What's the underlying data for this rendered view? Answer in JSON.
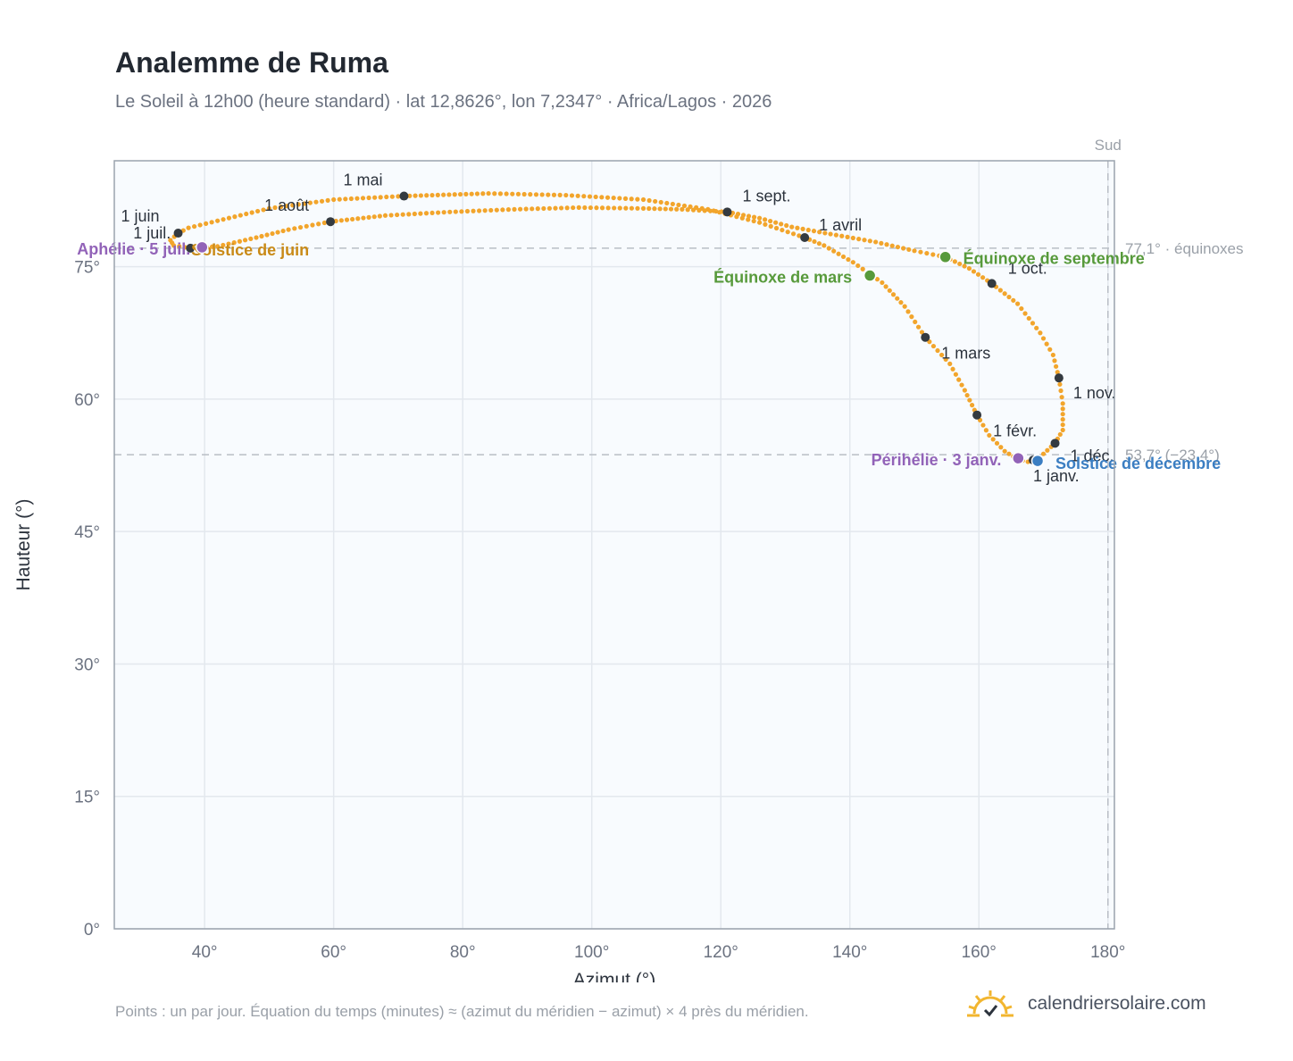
{
  "title": "Analemme de Ruma",
  "subtitle": "Le Soleil à 12h00 (heure standard) · lat 12,8626°, lon 7,2347° · Africa/Lagos · 2026",
  "footnote": "Points : un par jour. Équation du temps (minutes) ≈ (azimut du méridien − azimut) × 4 près du méridien.",
  "brand": {
    "name": "calendriersolaire.com",
    "icon": "sun-logo-icon"
  },
  "colors": {
    "curve": "#f2a52c",
    "month_marker": "#343a40",
    "solstice_june": "#c98a17",
    "solstice_december": "#3b7ec2",
    "equinox": "#579a3b",
    "apsis": "#9263b8",
    "plot_bg": "#f8fbfe",
    "grid": "#e3e8ee",
    "reference_line": "#b9bec5"
  },
  "chart_data": {
    "type": "scatter",
    "xlabel": "Azimut (°)",
    "ylabel": "Hauteur (°)",
    "xlim": [
      26,
      181
    ],
    "ylim": [
      0,
      87
    ],
    "xticks": [
      40,
      60,
      80,
      100,
      120,
      140,
      160,
      180
    ],
    "xtick_labels": [
      "40°",
      "60°",
      "80°",
      "100°",
      "120°",
      "140°",
      "160°",
      "180°"
    ],
    "yticks": [
      0,
      15,
      30,
      45,
      60,
      75
    ],
    "ytick_labels": [
      "0°",
      "15°",
      "30°",
      "45°",
      "60°",
      "75°"
    ],
    "grid": true,
    "meridian": {
      "azimuth": 180,
      "label": "Sud"
    },
    "reference_lines": [
      {
        "altitude": 77.1,
        "label": "77,1° · équinoxes"
      },
      {
        "altitude": 53.7,
        "label": "53,7° (−23,4°)"
      }
    ],
    "month_markers": [
      {
        "label": "1 janv.",
        "x": 168.4,
        "y": 53.1
      },
      {
        "label": "1 févr.",
        "x": 159.7,
        "y": 58.2
      },
      {
        "label": "1 mars",
        "x": 151.7,
        "y": 67.0
      },
      {
        "label": "1 avril",
        "x": 133.0,
        "y": 78.3
      },
      {
        "label": "1 mai",
        "x": 70.9,
        "y": 83.0
      },
      {
        "label": "1 juin",
        "x": 35.9,
        "y": 78.8
      },
      {
        "label": "1 juil.",
        "x": 37.8,
        "y": 77.1
      },
      {
        "label": "1 août",
        "x": 59.5,
        "y": 80.1
      },
      {
        "label": "1 sept.",
        "x": 121.0,
        "y": 81.2
      },
      {
        "label": "1 oct.",
        "x": 162.0,
        "y": 73.1
      },
      {
        "label": "1 nov.",
        "x": 172.4,
        "y": 62.4
      },
      {
        "label": "1 déc.",
        "x": 171.8,
        "y": 55.0
      }
    ],
    "events": [
      {
        "label": "Solstice de juin",
        "x": 39.3,
        "y": 77.1,
        "kind": "solstice_june"
      },
      {
        "label": "Aphélie · 5 juil.",
        "x": 39.6,
        "y": 77.2,
        "kind": "apsis"
      },
      {
        "label": "Équinoxe de mars",
        "x": 143.1,
        "y": 74.0,
        "kind": "equinox"
      },
      {
        "label": "Équinoxe de septembre",
        "x": 154.8,
        "y": 76.1,
        "kind": "equinox"
      },
      {
        "label": "Périhélie · 3 janv.",
        "x": 166.1,
        "y": 53.3,
        "kind": "apsis"
      },
      {
        "label": "Solstice de décembre",
        "x": 169.1,
        "y": 53.0,
        "kind": "solstice_december"
      }
    ],
    "daily_path": [
      [
        167.6,
        52.9
      ],
      [
        166.0,
        53.2
      ],
      [
        164.0,
        54.1
      ],
      [
        161.6,
        55.9
      ],
      [
        159.7,
        58.2
      ],
      [
        157.8,
        61.0
      ],
      [
        155.5,
        64.0
      ],
      [
        151.7,
        67.0
      ],
      [
        148.5,
        70.5
      ],
      [
        145.0,
        73.2
      ],
      [
        140.5,
        75.5
      ],
      [
        136.0,
        77.4
      ],
      [
        133.0,
        78.3
      ],
      [
        126.0,
        80.0
      ],
      [
        118.0,
        81.5
      ],
      [
        108.0,
        82.6
      ],
      [
        96.0,
        83.1
      ],
      [
        84.0,
        83.3
      ],
      [
        70.9,
        83.0
      ],
      [
        60.0,
        82.6
      ],
      [
        50.0,
        81.6
      ],
      [
        42.0,
        80.2
      ],
      [
        37.5,
        79.4
      ],
      [
        35.9,
        78.8
      ],
      [
        34.7,
        78.0
      ],
      [
        35.2,
        77.4
      ],
      [
        37.8,
        77.1
      ],
      [
        42.0,
        77.3
      ],
      [
        48.0,
        78.3
      ],
      [
        53.0,
        79.2
      ],
      [
        59.5,
        80.1
      ],
      [
        68.0,
        80.8
      ],
      [
        78.0,
        81.2
      ],
      [
        88.0,
        81.5
      ],
      [
        98.0,
        81.7
      ],
      [
        108.0,
        81.6
      ],
      [
        114.0,
        81.5
      ],
      [
        121.0,
        81.2
      ],
      [
        126.0,
        80.5
      ],
      [
        131.0,
        79.5
      ],
      [
        137.0,
        78.7
      ],
      [
        144.0,
        77.8
      ],
      [
        150.0,
        76.8
      ],
      [
        154.8,
        76.1
      ],
      [
        158.5,
        74.8
      ],
      [
        162.0,
        73.1
      ],
      [
        166.0,
        70.8
      ],
      [
        169.5,
        67.5
      ],
      [
        171.5,
        65.0
      ],
      [
        172.4,
        62.4
      ],
      [
        173.0,
        59.5
      ],
      [
        173.0,
        56.5
      ],
      [
        171.8,
        55.0
      ],
      [
        170.0,
        53.8
      ],
      [
        168.4,
        53.1
      ],
      [
        167.6,
        52.9
      ]
    ]
  }
}
